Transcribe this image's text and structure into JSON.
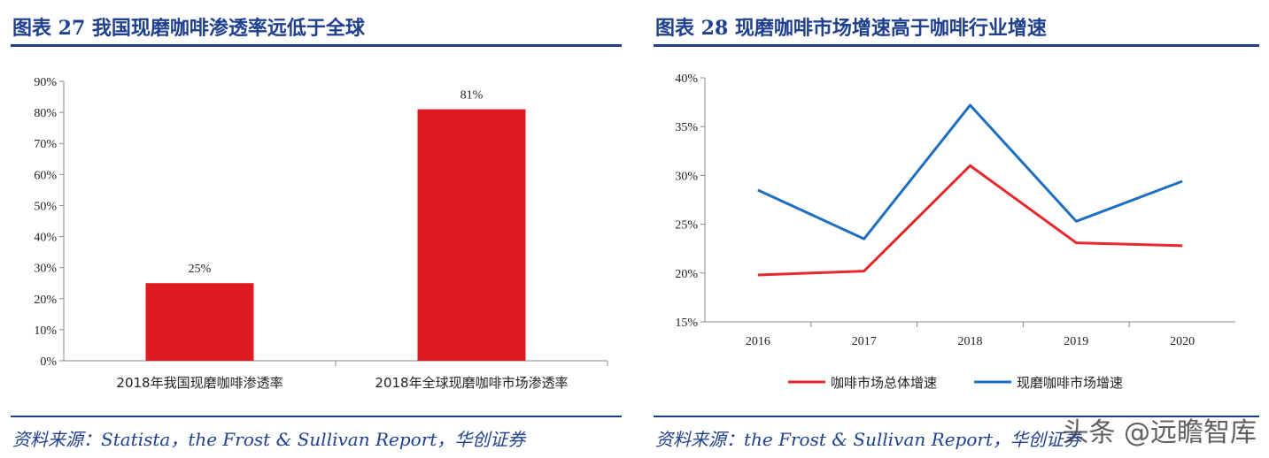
{
  "left": {
    "fig_title": "图表 27   我国现磨咖啡渗透率远低于全球",
    "source": "资料来源：Statista，the Frost & Sullivan Report，华创证券"
  },
  "right": {
    "fig_title": "图表 28   现磨咖啡市场增速高于咖啡行业增速",
    "source": "资料来源：the Frost & Sullivan Report，华创证券"
  },
  "watermark": "头条 @远瞻智库",
  "colors": {
    "accent": "#1f3f8f",
    "bar": "#e01a22",
    "red_line": "#e8262d",
    "blue_line": "#1f6fc0"
  },
  "chart_data": [
    {
      "type": "bar",
      "categories": [
        "2018年我国现磨咖啡渗透率",
        "2018年全球现磨咖啡市场渗透率"
      ],
      "values": [
        25,
        81
      ],
      "data_labels": [
        "25%",
        "81%"
      ],
      "ylim": [
        0,
        90
      ],
      "yticks": [
        "0%",
        "10%",
        "20%",
        "30%",
        "40%",
        "50%",
        "60%",
        "70%",
        "80%",
        "90%"
      ],
      "grid": false
    },
    {
      "type": "line",
      "x": [
        "2016",
        "2017",
        "2018",
        "2019",
        "2020"
      ],
      "series": [
        {
          "name": "咖啡市场总体增速",
          "values": [
            19.8,
            20.2,
            31.0,
            23.1,
            22.8
          ]
        },
        {
          "name": "现磨咖啡市场增速",
          "values": [
            28.5,
            23.5,
            37.2,
            25.3,
            29.4
          ]
        }
      ],
      "ylim": [
        15,
        40
      ],
      "yticks": [
        "15%",
        "20%",
        "25%",
        "30%",
        "35%",
        "40%"
      ],
      "legend": "bottom",
      "grid": false
    }
  ]
}
